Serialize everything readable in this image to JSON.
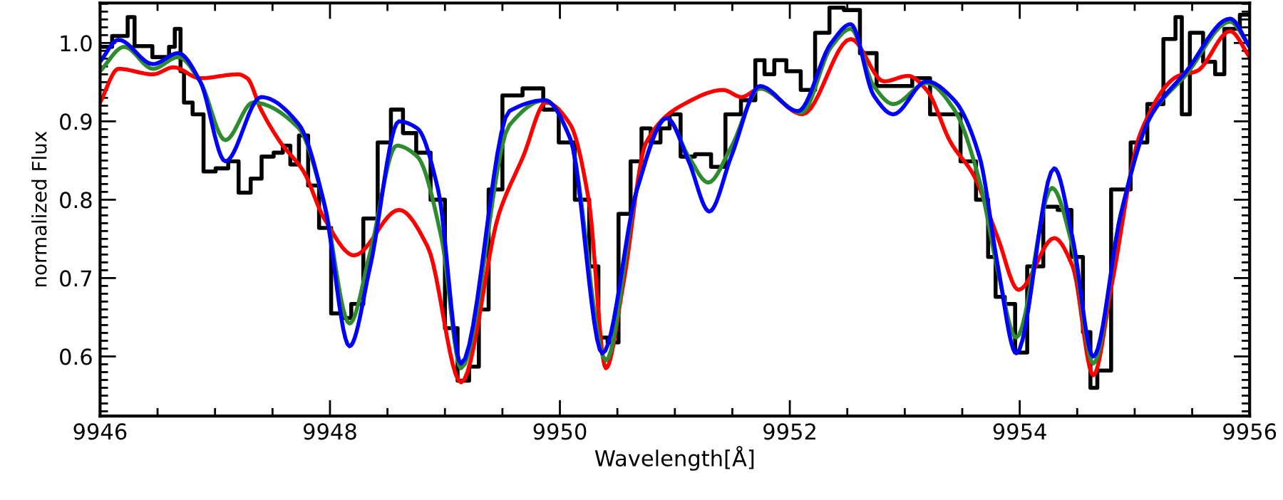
{
  "chart_data": {
    "type": "line",
    "xlabel": "Wavelength[Å]",
    "ylabel": "normalized Flux",
    "xlim": [
      9946,
      9956
    ],
    "xticks": [
      9946,
      9948,
      9950,
      9952,
      9954,
      9956
    ],
    "ylim": [
      0.524,
      1.051
    ],
    "yticks": [
      0.6,
      0.7,
      0.8,
      0.9,
      {
        "value": 1,
        "label": "1.0"
      }
    ],
    "grid": false,
    "marker": "none",
    "line_style": "solid",
    "series": [
      {
        "type": "step",
        "color": "#000000",
        "x": [
          9946.0,
          9946.21,
          9946.27,
          9946.33,
          9946.58,
          9946.62,
          9946.68,
          9946.72,
          9946.74,
          9946.87,
          9946.93,
          9947.08,
          9947.15,
          9947.26,
          9947.36,
          9947.45,
          9947.57,
          9947.61,
          9947.7,
          9947.76,
          9947.86,
          9947.95,
          9948.07,
          9948.14,
          9948.23,
          9948.35,
          9948.48,
          9948.58,
          9948.69,
          9948.81,
          9948.94,
          9949.06,
          9949.16,
          9949.26,
          9949.33,
          9949.43,
          9949.57,
          9949.78,
          9949.93,
          9950.05,
          9950.21,
          9950.3,
          9950.37,
          9950.46,
          9950.56,
          9950.67,
          9950.75,
          9950.83,
          9950.92,
          9950.99,
          9951.11,
          9951.24,
          9951.39,
          9951.49,
          9951.66,
          9951.74,
          9951.82,
          9951.91,
          9952.03,
          9952.16,
          9952.28,
          9952.41,
          9952.53,
          9952.69,
          9952.82,
          9952.98,
          9953.15,
          9953.29,
          9953.41,
          9953.56,
          9953.68,
          9953.77,
          9953.81,
          9953.93,
          9953.99,
          9954.14,
          9954.27,
          9954.39,
          9954.51,
          9954.59,
          9954.64,
          9954.71,
          9954.88,
          9955.05,
          9955.17,
          9955.33,
          9955.38,
          9955.44,
          9955.52,
          9955.67,
          9955.73,
          9955.83,
          9956.0
        ],
        "values": [
          0.995,
          1.009,
          1.033,
          0.996,
          0.982,
          0.995,
          1.018,
          0.964,
          0.924,
          0.909,
          0.836,
          0.84,
          0.849,
          0.809,
          0.827,
          0.855,
          0.86,
          0.869,
          0.845,
          0.882,
          0.818,
          0.764,
          0.655,
          0.649,
          0.667,
          0.776,
          0.873,
          0.915,
          0.885,
          0.86,
          0.8,
          0.636,
          0.569,
          0.587,
          0.66,
          0.813,
          0.933,
          0.942,
          0.915,
          0.873,
          0.8,
          0.715,
          0.624,
          0.618,
          0.782,
          0.849,
          0.891,
          0.873,
          0.891,
          0.909,
          0.855,
          0.858,
          0.842,
          0.909,
          0.927,
          0.978,
          0.96,
          0.978,
          0.964,
          0.94,
          1.013,
          1.045,
          1.042,
          0.987,
          0.945,
          0.945,
          0.955,
          0.909,
          0.909,
          0.849,
          0.8,
          0.727,
          0.676,
          0.667,
          0.605,
          0.715,
          0.791,
          0.787,
          0.727,
          0.631,
          0.56,
          0.582,
          0.813,
          0.873,
          0.922,
          1.005,
          1.033,
          0.909,
          1.013,
          0.976,
          0.96,
          1.018,
          1.036
        ]
      },
      {
        "color": "#ff0000",
        "x": [
          9946.0,
          9946.16,
          9946.46,
          9946.64,
          9946.87,
          9947.2,
          9947.28,
          9947.4,
          9947.57,
          9947.77,
          9947.95,
          9948.21,
          9948.6,
          9948.85,
          9949.14,
          9949.47,
          9949.68,
          9949.88,
          9950.09,
          9950.25,
          9950.4,
          9950.55,
          9950.75,
          9951.08,
          9951.42,
          9951.58,
          9951.74,
          9952.11,
          9952.53,
          9952.82,
          9953.03,
          9953.19,
          9953.4,
          9953.6,
          9953.81,
          9953.99,
          9954.3,
          9954.46,
          9954.64,
          9954.8,
          9955.05,
          9955.38,
          9955.54,
          9955.83,
          9956.0
        ],
        "values": [
          0.924,
          0.967,
          0.96,
          0.969,
          0.955,
          0.96,
          0.955,
          0.915,
          0.873,
          0.836,
          0.776,
          0.729,
          0.787,
          0.74,
          0.567,
          0.782,
          0.855,
          0.924,
          0.896,
          0.8,
          0.585,
          0.691,
          0.873,
          0.922,
          0.94,
          0.931,
          0.942,
          0.909,
          1.005,
          0.951,
          0.958,
          0.94,
          0.873,
          0.831,
          0.751,
          0.685,
          0.751,
          0.715,
          0.576,
          0.691,
          0.885,
          0.958,
          0.964,
          1.015,
          0.982
        ]
      },
      {
        "color": "#2e8b2e",
        "x": [
          9946.0,
          9946.21,
          9946.46,
          9946.68,
          9946.87,
          9947.09,
          9947.33,
          9947.73,
          9947.95,
          9948.17,
          9948.35,
          9948.58,
          9948.76,
          9948.97,
          9949.14,
          9949.56,
          9949.87,
          9950.09,
          9950.4,
          9950.67,
          9950.93,
          9951.12,
          9951.29,
          9951.49,
          9951.74,
          9952.1,
          9952.36,
          9952.53,
          9952.73,
          9952.9,
          9953.19,
          9953.43,
          9953.65,
          9953.81,
          9953.97,
          9954.28,
          9954.46,
          9954.64,
          9954.88,
          9955.13,
          9955.45,
          9955.83,
          9956.0
        ],
        "values": [
          0.964,
          0.995,
          0.967,
          0.982,
          0.951,
          0.876,
          0.924,
          0.891,
          0.795,
          0.642,
          0.733,
          0.869,
          0.855,
          0.751,
          0.585,
          0.895,
          0.927,
          0.878,
          0.595,
          0.813,
          0.904,
          0.855,
          0.822,
          0.867,
          0.942,
          0.911,
          0.995,
          1.018,
          0.945,
          0.922,
          0.949,
          0.915,
          0.824,
          0.709,
          0.624,
          0.815,
          0.74,
          0.591,
          0.782,
          0.904,
          0.96,
          1.027,
          0.995
        ]
      },
      {
        "color": "#0000ff",
        "x": [
          9946.0,
          9946.16,
          9946.46,
          9946.68,
          9946.87,
          9947.09,
          9947.4,
          9947.73,
          9947.95,
          9948.17,
          9948.35,
          9948.6,
          9948.76,
          9948.94,
          9949.14,
          9949.56,
          9949.87,
          9950.09,
          9950.37,
          9950.67,
          9950.93,
          9951.12,
          9951.3,
          9951.49,
          9951.74,
          9952.07,
          9952.36,
          9952.53,
          9952.73,
          9952.9,
          9953.19,
          9953.43,
          9953.65,
          9953.81,
          9953.97,
          9954.3,
          9954.46,
          9954.64,
          9954.88,
          9955.13,
          9955.45,
          9955.83,
          9956.0
        ],
        "values": [
          0.976,
          1.004,
          0.973,
          0.987,
          0.951,
          0.849,
          0.931,
          0.896,
          0.795,
          0.613,
          0.715,
          0.9,
          0.891,
          0.813,
          0.591,
          0.913,
          0.927,
          0.878,
          0.604,
          0.813,
          0.904,
          0.849,
          0.785,
          0.855,
          0.945,
          0.913,
          1.0,
          1.024,
          0.933,
          0.909,
          0.951,
          0.927,
          0.855,
          0.715,
          0.604,
          0.84,
          0.751,
          0.6,
          0.782,
          0.904,
          0.964,
          1.031,
          0.995
        ]
      }
    ]
  }
}
